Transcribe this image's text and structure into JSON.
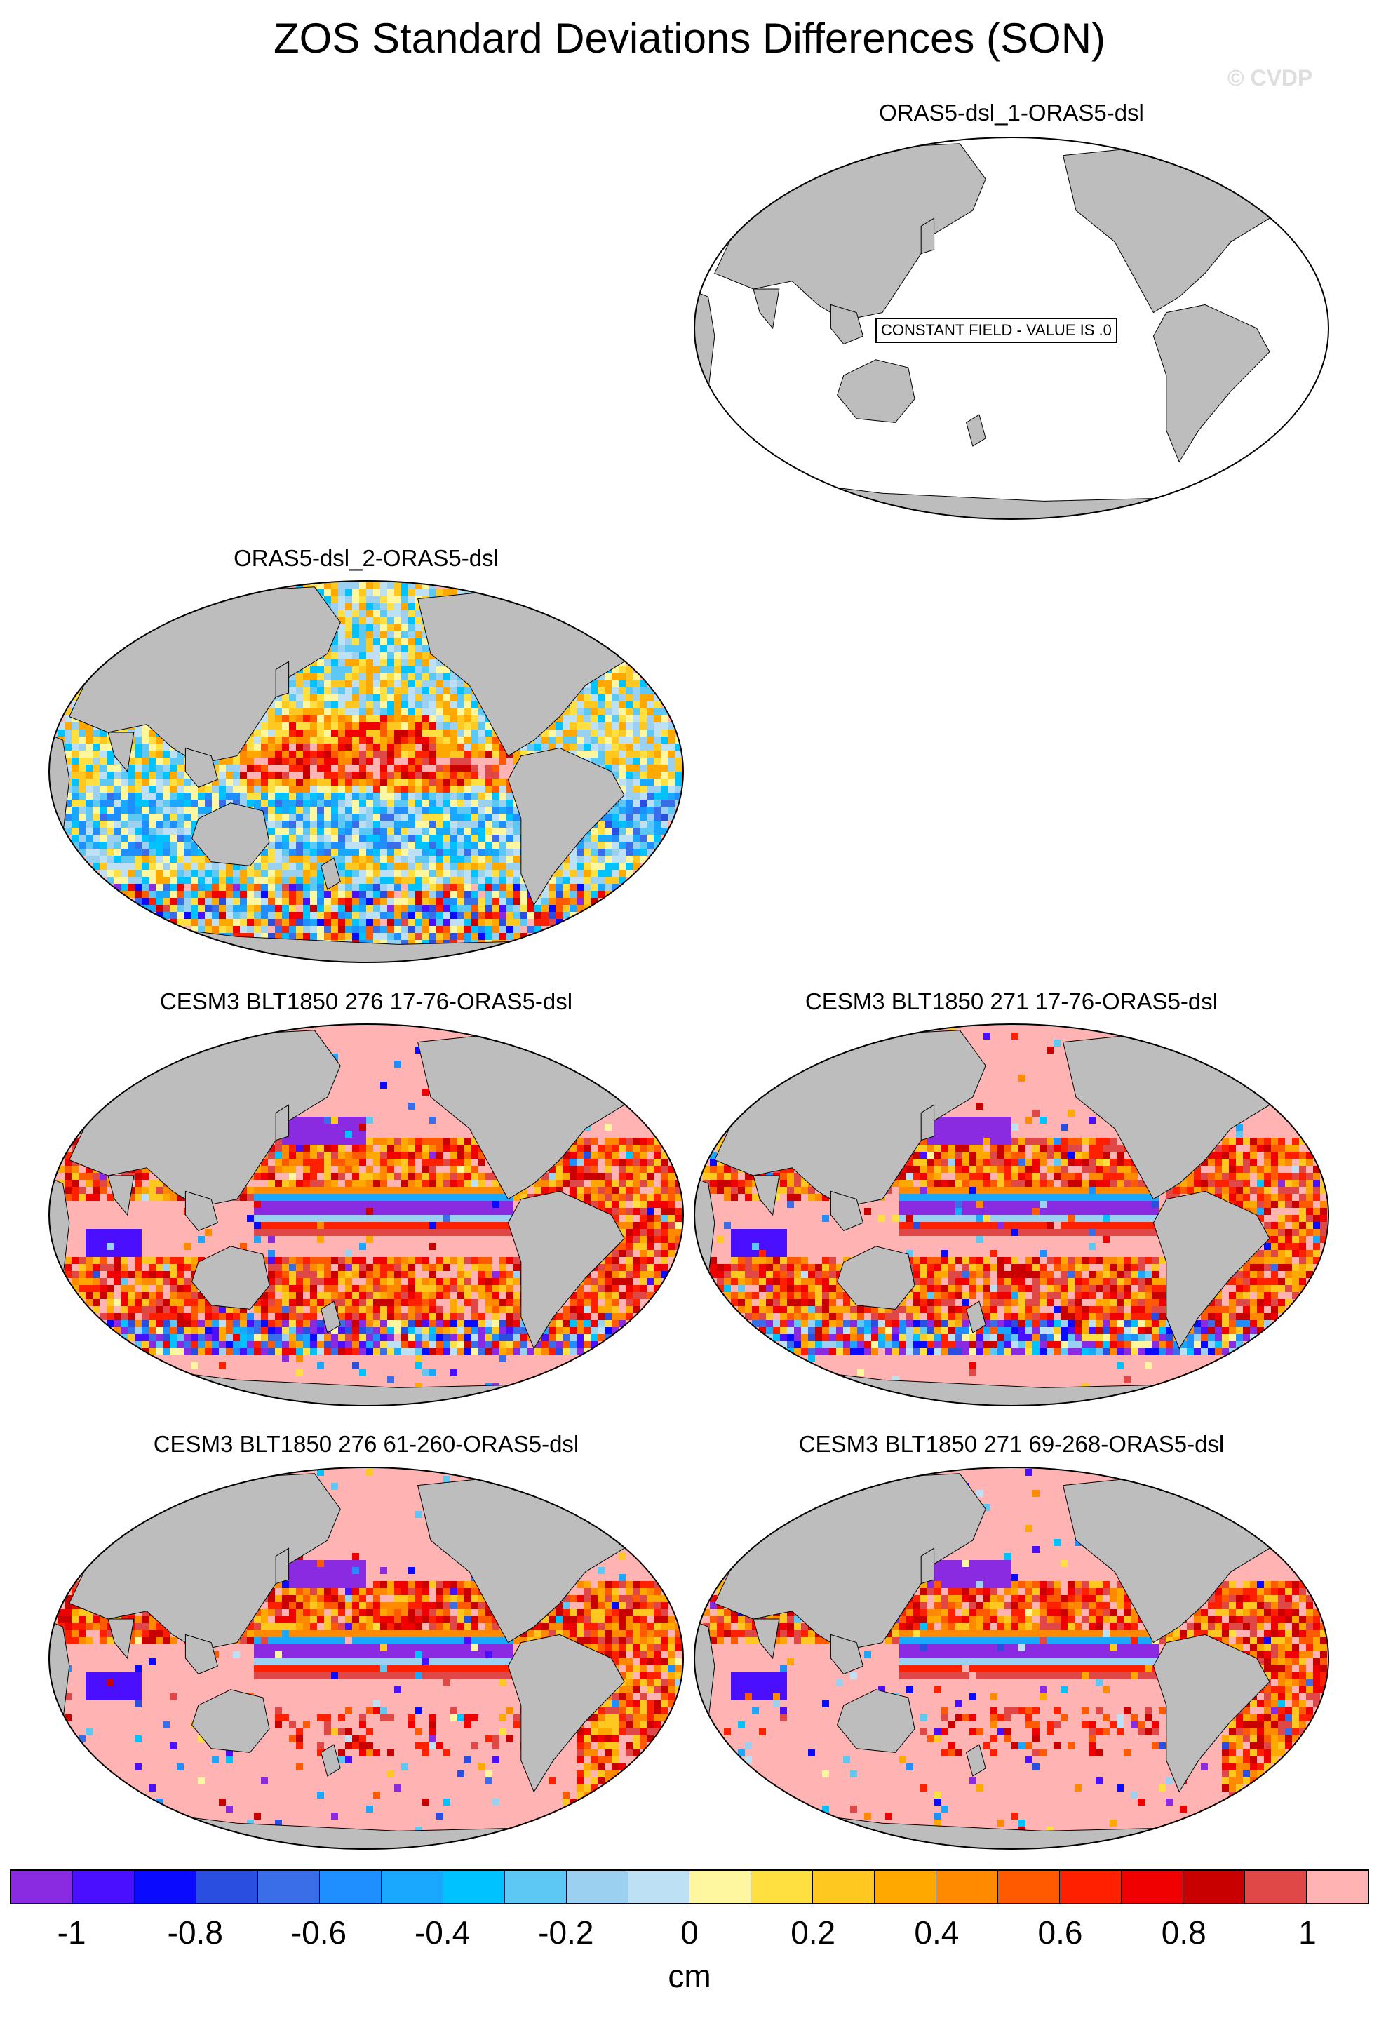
{
  "figure": {
    "title": "ZOS Standard Deviations Differences (SON)",
    "watermark": "© CVDP"
  },
  "panels": [
    {
      "id": "p1",
      "title": "ORAS5-dsl_1-ORAS5-dsl",
      "constant_field": true,
      "note": "CONSTANT FIELD - VALUE IS .0"
    },
    {
      "id": "p2",
      "title": "ORAS5-dsl_2-ORAS5-dsl",
      "constant_field": false,
      "pattern": "mixed"
    },
    {
      "id": "p3",
      "title": "CESM3 BLT1850 276 17-76-ORAS5-dsl",
      "constant_field": false,
      "pattern": "model"
    },
    {
      "id": "p4",
      "title": "CESM3 BLT1850 271 17-76-ORAS5-dsl",
      "constant_field": false,
      "pattern": "model"
    },
    {
      "id": "p5",
      "title": "CESM3 BLT1850 276 61-260-ORAS5-dsl",
      "constant_field": false,
      "pattern": "model"
    },
    {
      "id": "p6",
      "title": "CESM3 BLT1850 271 69-268-ORAS5-dsl",
      "constant_field": false,
      "pattern": "model"
    }
  ],
  "colors": {
    "land": "#bdbdbd",
    "ocean_constant": "#ffffff",
    "saturated_positive": "#ffb3b3"
  },
  "colorbar": {
    "units": "cm",
    "tick_labels": [
      "-1",
      "-0.8",
      "-0.6",
      "-0.4",
      "-0.2",
      "0",
      "0.2",
      "0.4",
      "0.6",
      "0.8",
      "1"
    ],
    "tick_values": [
      -1,
      -0.8,
      -0.6,
      -0.4,
      -0.2,
      0,
      0.2,
      0.4,
      0.6,
      0.8,
      1
    ],
    "segment_colors": [
      "#8a2be2",
      "#4b0fff",
      "#0a0aff",
      "#2a4ee0",
      "#3a6ee8",
      "#1f8fff",
      "#1aa8ff",
      "#00c2ff",
      "#5ec8f5",
      "#9bd0f0",
      "#bde0f5",
      "#fff7a0",
      "#ffe040",
      "#ffc820",
      "#ffa800",
      "#ff8a00",
      "#ff5a00",
      "#ff2000",
      "#f00000",
      "#c80000",
      "#e04848",
      "#ffb3b3"
    ]
  }
}
